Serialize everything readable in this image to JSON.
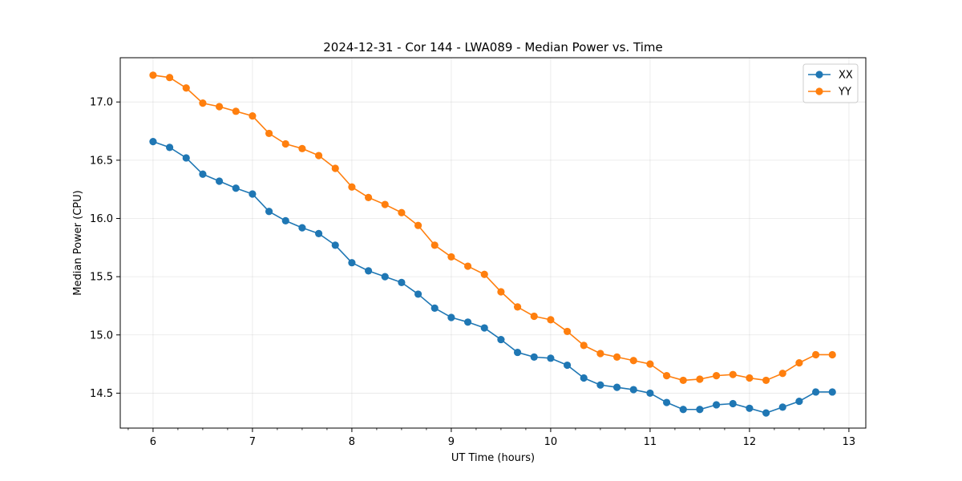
{
  "chart_data": {
    "type": "line",
    "title": "2024-12-31 - Cor 144 - LWA089 - Median Power vs. Time",
    "xlabel": "UT Time (hours)",
    "ylabel": "Median Power (CPU)",
    "xlim": [
      5.67,
      13.17
    ],
    "ylim": [
      14.2,
      17.38
    ],
    "xticks": [
      "6",
      "7",
      "8",
      "9",
      "10",
      "11",
      "12",
      "13"
    ],
    "yticks": [
      "14.5",
      "15.0",
      "15.5",
      "16.0",
      "16.5",
      "17.0"
    ],
    "grid": true,
    "legend_position": "top-right",
    "x": [
      6.0,
      6.1667,
      6.3333,
      6.5,
      6.6667,
      6.8333,
      7.0,
      7.1667,
      7.3333,
      7.5,
      7.6667,
      7.8333,
      8.0,
      8.1667,
      8.3333,
      8.5,
      8.6667,
      8.8333,
      9.0,
      9.1667,
      9.3333,
      9.5,
      9.6667,
      9.8333,
      10.0,
      10.1667,
      10.3333,
      10.5,
      10.6667,
      10.8333,
      11.0,
      11.1667,
      11.3333,
      11.5,
      11.6667,
      11.8333,
      12.0,
      12.1667,
      12.3333,
      12.5,
      12.6667,
      12.8333
    ],
    "series": [
      {
        "name": "XX",
        "color": "#1f77b4",
        "values": [
          16.66,
          16.61,
          16.52,
          16.38,
          16.32,
          16.26,
          16.21,
          16.06,
          15.98,
          15.92,
          15.87,
          15.77,
          15.62,
          15.55,
          15.5,
          15.45,
          15.35,
          15.23,
          15.15,
          15.11,
          15.06,
          14.96,
          14.85,
          14.81,
          14.8,
          14.74,
          14.63,
          14.57,
          14.55,
          14.53,
          14.5,
          14.42,
          14.36,
          14.36,
          14.4,
          14.41,
          14.37,
          14.33,
          14.38,
          14.43,
          14.51,
          14.51
        ]
      },
      {
        "name": "YY",
        "color": "#ff7f0e",
        "values": [
          17.23,
          17.21,
          17.12,
          16.99,
          16.96,
          16.92,
          16.88,
          16.73,
          16.64,
          16.6,
          16.54,
          16.43,
          16.27,
          16.18,
          16.12,
          16.05,
          15.94,
          15.77,
          15.67,
          15.59,
          15.52,
          15.37,
          15.24,
          15.16,
          15.13,
          15.03,
          14.91,
          14.84,
          14.81,
          14.78,
          14.75,
          14.65,
          14.61,
          14.62,
          14.65,
          14.66,
          14.63,
          14.61,
          14.67,
          14.76,
          14.83,
          14.83
        ]
      }
    ]
  }
}
